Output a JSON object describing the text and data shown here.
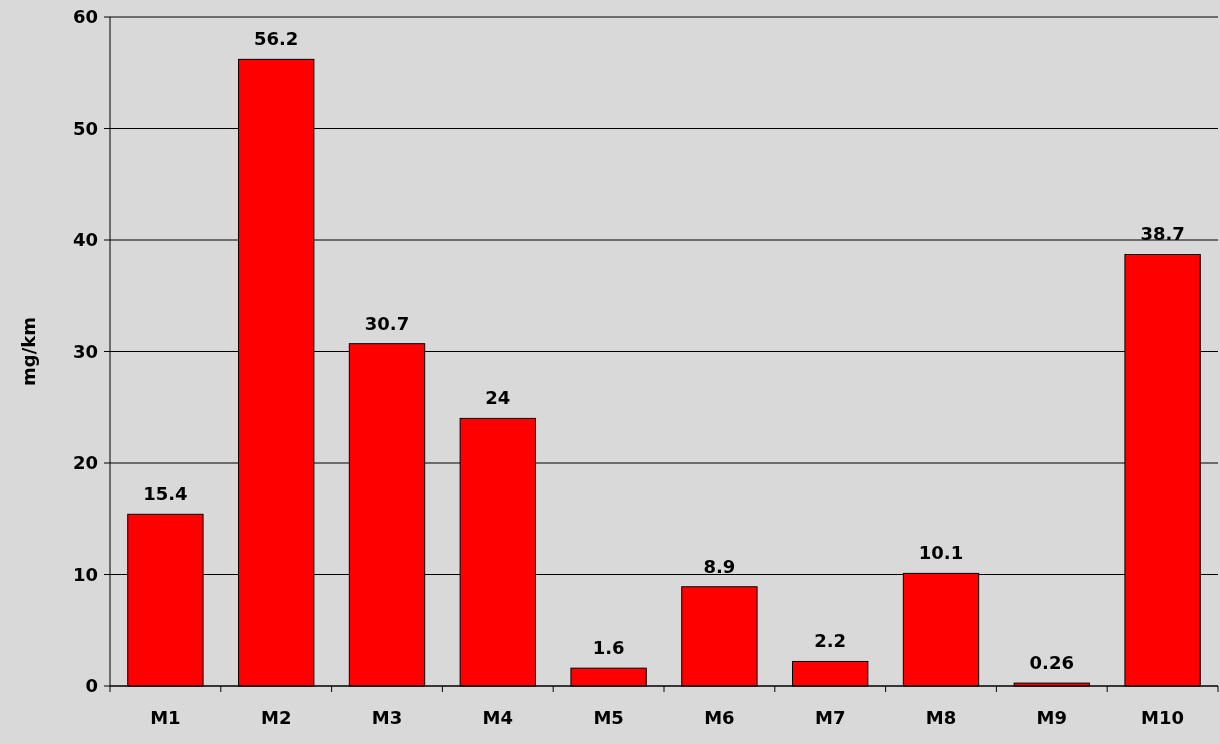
{
  "chart_data": {
    "type": "bar",
    "ylabel": "mg/km",
    "categories": [
      "M1",
      "M2",
      "M3",
      "M4",
      "M5",
      "M6",
      "M7",
      "M8",
      "M9",
      "M10"
    ],
    "values": [
      15.4,
      56.2,
      30.7,
      24,
      1.6,
      8.9,
      2.2,
      10.1,
      0.26,
      38.7
    ],
    "color": "#ff0000",
    "ylim": [
      0,
      60
    ],
    "yticks": [
      0,
      10,
      20,
      30,
      40,
      50,
      60
    ],
    "grid": "y",
    "data_labels": true
  }
}
